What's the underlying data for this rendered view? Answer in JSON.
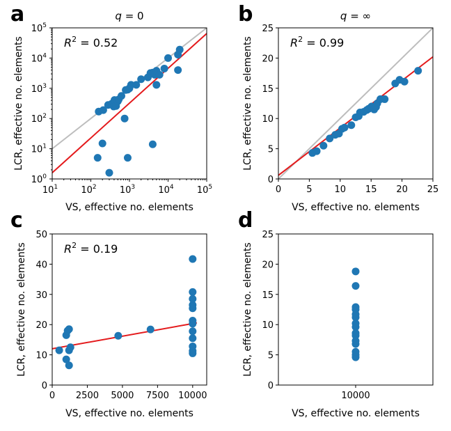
{
  "colors": {
    "points": "#1f77b4",
    "fit": "#e41a1c",
    "identity": "#bdbdbd",
    "axes": "#000000"
  },
  "chart_data": [
    {
      "panel": "a",
      "type": "scatter",
      "title_var": "q",
      "title_val": "= 0",
      "xscale": "log",
      "yscale": "log",
      "xlim": [
        10,
        100000
      ],
      "ylim": [
        1,
        100000
      ],
      "xlabel": "VS, effective no. elements",
      "ylabel": "LCR, effective no. elements",
      "xticks": [
        10,
        100,
        1000,
        10000,
        100000
      ],
      "yticks": [
        1,
        10,
        100,
        1000,
        10000,
        100000
      ],
      "tick_base": "10",
      "xtick_exps": [
        "1",
        "2",
        "3",
        "4",
        "5"
      ],
      "ytick_exps": [
        "0",
        "1",
        "2",
        "3",
        "4",
        "5"
      ],
      "r2_label": "R",
      "r2_value": "= 0.52",
      "identity_line": true,
      "fit_line": {
        "x": [
          10,
          100000
        ],
        "y": [
          1.6,
          65000
        ]
      },
      "points": [
        [
          150,
          5
        ],
        [
          200,
          15
        ],
        [
          300,
          1.6
        ],
        [
          750,
          100
        ],
        [
          900,
          5
        ],
        [
          4000,
          14
        ],
        [
          160,
          170
        ],
        [
          210,
          190
        ],
        [
          280,
          280
        ],
        [
          350,
          310
        ],
        [
          390,
          250
        ],
        [
          410,
          410
        ],
        [
          450,
          260
        ],
        [
          500,
          370
        ],
        [
          530,
          430
        ],
        [
          620,
          560
        ],
        [
          800,
          880
        ],
        [
          900,
          900
        ],
        [
          1000,
          1000
        ],
        [
          1100,
          1300
        ],
        [
          1500,
          1300
        ],
        [
          2000,
          2000
        ],
        [
          3000,
          2300
        ],
        [
          3500,
          3200
        ],
        [
          4000,
          3300
        ],
        [
          4200,
          3000
        ],
        [
          4500,
          2800
        ],
        [
          5000,
          1300
        ],
        [
          5000,
          3800
        ],
        [
          6000,
          2800
        ],
        [
          8000,
          4500
        ],
        [
          10000,
          10000
        ],
        [
          18000,
          4000
        ],
        [
          18000,
          13000
        ],
        [
          20000,
          19000
        ]
      ]
    },
    {
      "panel": "b",
      "type": "scatter",
      "title_var": "q",
      "title_val": "= ∞",
      "xlim": [
        0,
        25
      ],
      "ylim": [
        0,
        25
      ],
      "xlabel": "VS, effective no. elements",
      "ylabel": "LCR, effective no. elements",
      "xticks": [
        "0",
        "5",
        "10",
        "15",
        "20",
        "25"
      ],
      "yticks": [
        "0",
        "5",
        "10",
        "15",
        "20",
        "25"
      ],
      "r2_label": "R",
      "r2_value": "= 0.99",
      "identity_line": true,
      "fit_line": {
        "x": [
          0,
          25
        ],
        "y": [
          0.6,
          20.2
        ]
      },
      "points": [
        [
          5.5,
          4.3
        ],
        [
          6.2,
          4.6
        ],
        [
          7.3,
          5.5
        ],
        [
          8.3,
          6.7
        ],
        [
          9.2,
          7.3
        ],
        [
          9.8,
          7.5
        ],
        [
          10.3,
          8.3
        ],
        [
          10.7,
          8.5
        ],
        [
          11.8,
          8.9
        ],
        [
          12.5,
          10.2
        ],
        [
          13,
          10.4
        ],
        [
          13.2,
          11
        ],
        [
          13.8,
          11.1
        ],
        [
          14.3,
          11.4
        ],
        [
          14.6,
          11.6
        ],
        [
          15,
          11.9
        ],
        [
          15.1,
          12
        ],
        [
          15.5,
          11.5
        ],
        [
          15.8,
          11.9
        ],
        [
          16,
          12.5
        ],
        [
          16.5,
          13.2
        ],
        [
          17.2,
          13.2
        ],
        [
          18.9,
          15.8
        ],
        [
          19.6,
          16.4
        ],
        [
          20.4,
          16.1
        ],
        [
          22.6,
          17.9
        ]
      ]
    },
    {
      "panel": "c",
      "type": "scatter",
      "xlim": [
        0,
        11000
      ],
      "ylim": [
        0,
        50
      ],
      "xlabel": "VS, effective no. elements",
      "ylabel": "LCR, effective no. elements",
      "xticks": [
        "0",
        "2500",
        "5000",
        "7500",
        "10000"
      ],
      "yticks": [
        "0",
        "10",
        "20",
        "30",
        "40",
        "50"
      ],
      "r2_label": "R",
      "r2_value": "= 0.19",
      "fit_line": {
        "x": [
          0,
          10300
        ],
        "y": [
          12.0,
          20.6
        ]
      },
      "points": [
        [
          500,
          11.5
        ],
        [
          1000,
          16.5
        ],
        [
          1100,
          18
        ],
        [
          1200,
          18.5
        ],
        [
          1000,
          8.5
        ],
        [
          1200,
          11.5
        ],
        [
          1300,
          12.5
        ],
        [
          1200,
          6.5
        ],
        [
          4700,
          16.3
        ],
        [
          7000,
          18.4
        ],
        [
          10000,
          10.5
        ],
        [
          10000,
          11.3
        ],
        [
          10000,
          12.8
        ],
        [
          10000,
          15.5
        ],
        [
          10000,
          17.8
        ],
        [
          10000,
          20.3
        ],
        [
          10000,
          21.3
        ],
        [
          10000,
          25.4
        ],
        [
          10000,
          26.5
        ],
        [
          10000,
          28.5
        ],
        [
          10000,
          30.8
        ],
        [
          10000,
          41.7
        ]
      ]
    },
    {
      "panel": "d",
      "type": "scatter",
      "ylim": [
        0,
        25
      ],
      "xlabel": "VS, effective no. elements",
      "ylabel": "LCR, effective no. elements",
      "xticks": [
        "10000"
      ],
      "yticks": [
        "0",
        "5",
        "10",
        "15",
        "20",
        "25"
      ],
      "points": [
        [
          10000,
          4.6
        ],
        [
          10000,
          5
        ],
        [
          10000,
          5.5
        ],
        [
          10000,
          6.8
        ],
        [
          10000,
          7.3
        ],
        [
          10000,
          8.2
        ],
        [
          10000,
          8.6
        ],
        [
          10000,
          9.6
        ],
        [
          10000,
          10.2
        ],
        [
          10000,
          11.2
        ],
        [
          10000,
          11.7
        ],
        [
          10000,
          12.5
        ],
        [
          10000,
          12.9
        ],
        [
          10000,
          16.4
        ],
        [
          10000,
          18.8
        ]
      ]
    }
  ]
}
